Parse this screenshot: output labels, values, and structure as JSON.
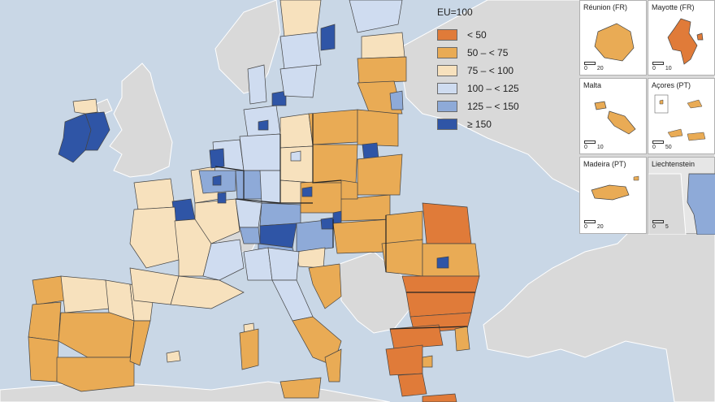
{
  "legend": {
    "title": "EU=100",
    "classes": [
      {
        "label": "< 50",
        "color": "#e07b39"
      },
      {
        "label": "50 – < 75",
        "color": "#e9ab55"
      },
      {
        "label": "75 – < 100",
        "color": "#f7e1bd"
      },
      {
        "label": "100 – < 125",
        "color": "#cfdcf0"
      },
      {
        "label": "125 – < 150",
        "color": "#8eaad8"
      },
      {
        "label": "≥ 150",
        "color": "#2f55a6"
      }
    ]
  },
  "insets": [
    {
      "title": "Réunion (FR)",
      "scale": [
        "0",
        "20"
      ],
      "class": 1
    },
    {
      "title": "Mayotte (FR)",
      "scale": [
        "0",
        "10"
      ],
      "class": 0
    },
    {
      "title": "Malta",
      "scale": [
        "0",
        "10"
      ],
      "class": 1
    },
    {
      "title": "Açores (PT)",
      "scale": [
        "0",
        "50"
      ],
      "class": 1
    },
    {
      "title": "Madeira (PT)",
      "scale": [
        "0",
        "20"
      ],
      "class": 1
    },
    {
      "title": "Liechtenstein",
      "scale": [
        "0",
        "5"
      ],
      "class": 4
    }
  ],
  "colors": {
    "sea": "#c9d7e6",
    "non_eu": "#d9d9d9",
    "no_data": "#c8c8c8",
    "border": "#444444"
  }
}
